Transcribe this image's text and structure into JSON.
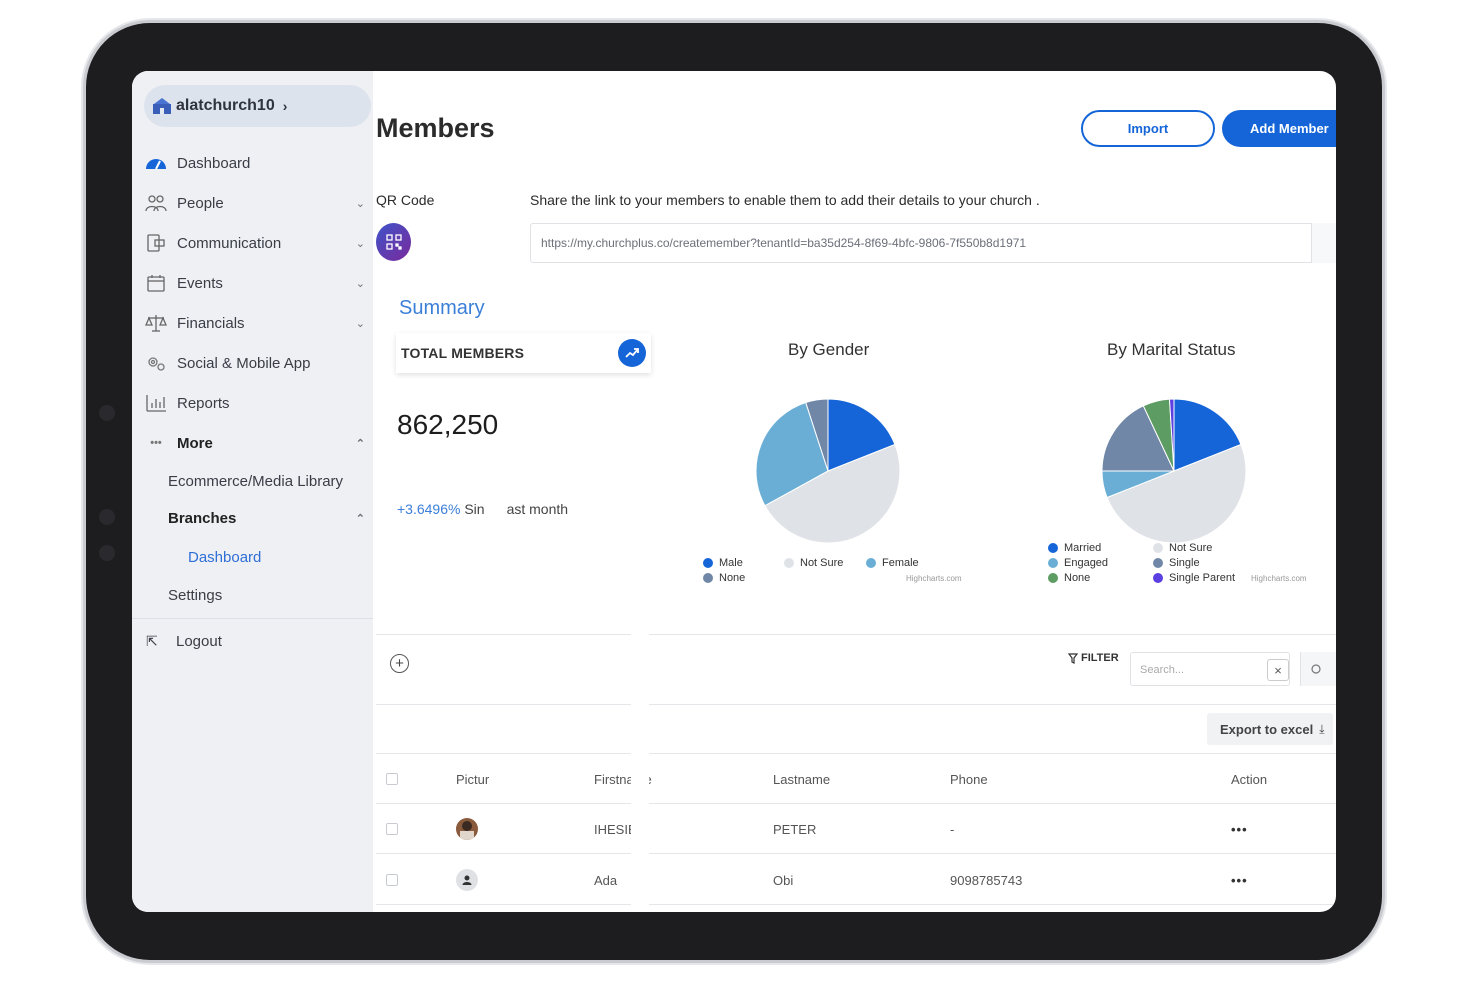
{
  "sidebar": {
    "church_name": "alatchurch10",
    "items": [
      {
        "label": "Dashboard"
      },
      {
        "label": "People"
      },
      {
        "label": "Communication"
      },
      {
        "label": "Events"
      },
      {
        "label": "Financials"
      },
      {
        "label": "Social & Mobile App"
      },
      {
        "label": "Reports"
      },
      {
        "label": "More"
      }
    ],
    "more_items": [
      {
        "label": "Ecommerce/Media Library"
      },
      {
        "label": "Branches"
      },
      {
        "label": "Settings"
      }
    ],
    "branches_items": [
      {
        "label": "Dashboard"
      }
    ],
    "logout_label": "Logout"
  },
  "header": {
    "title": "Members",
    "import_label": "Import",
    "add_member_label": "Add Member"
  },
  "qr": {
    "label": "QR Code",
    "share_text": "Share the link to your members to enable them to add their details to your church .",
    "link": "https://my.churchplus.co/createmember?tenantId=ba35d254-8f69-4bfc-9806-7f550b8d1971"
  },
  "summary": {
    "title": "Summary",
    "total_label": "TOTAL MEMBERS",
    "total_value": "862,250",
    "growth_pct": "+3.6496%",
    "growth_prefix": " Sin",
    "growth_suffix": "ast month"
  },
  "chart_data": [
    {
      "type": "pie",
      "title": "By Gender",
      "credit": "Highcharts.com",
      "labels": [
        "Male",
        "Not Sure",
        "Female",
        "None"
      ],
      "values": [
        19,
        48,
        28,
        5
      ],
      "colors": [
        "#1565d8",
        "#dfe2e6",
        "#6aaed6",
        "#7187a8"
      ],
      "legend": "bottom"
    },
    {
      "type": "pie",
      "title": "By Marital Status",
      "credit": "Highcharts.com",
      "labels": [
        "Married",
        "Not Sure",
        "Engaged",
        "Single",
        "None",
        "Single Parent"
      ],
      "values": [
        19,
        50,
        6,
        18,
        6,
        1
      ],
      "colors": [
        "#1565d8",
        "#dfe2e6",
        "#6aaed6",
        "#7187a8",
        "#5d9c62",
        "#5b3fe0"
      ],
      "legend": "bottom"
    }
  ],
  "table": {
    "filter_label": "FILTER",
    "search_placeholder": "Search...",
    "clear_icon": "×",
    "export_label": "Export to excel",
    "columns": [
      "Pictur",
      "Firstname",
      "Lastname",
      "Phone",
      "Action"
    ],
    "rows": [
      {
        "firstname": "IHESIE",
        "lastname": "PETER",
        "phone": "-",
        "action": "•••"
      },
      {
        "firstname": "Ada",
        "lastname": "Obi",
        "phone": "9098785743",
        "action": "•••"
      }
    ]
  }
}
